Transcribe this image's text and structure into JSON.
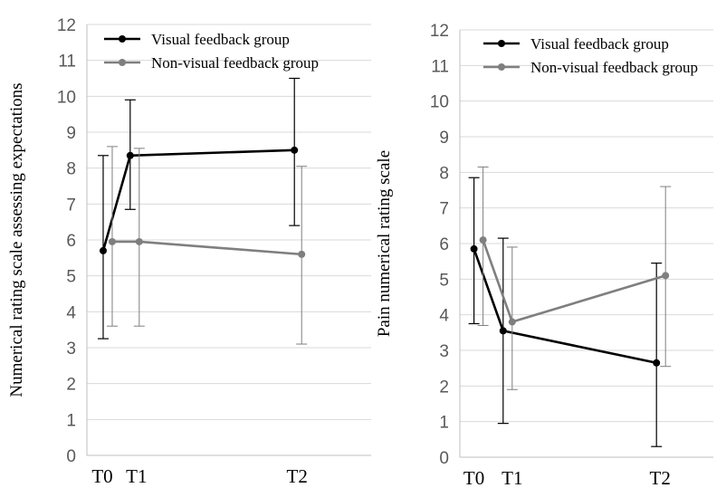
{
  "chart_data": [
    {
      "type": "line",
      "title": "",
      "xlabel": "",
      "ylabel": "Numerical  rating  scale  assessing  expectations",
      "ylim": [
        0,
        12
      ],
      "yticks": [
        0,
        1,
        2,
        3,
        4,
        5,
        6,
        7,
        8,
        9,
        10,
        11,
        12
      ],
      "categories": [
        "T0",
        "T1",
        "T2"
      ],
      "grid": true,
      "legend_position": "top",
      "series": [
        {
          "name": "Visual feedback group",
          "color": "#000000",
          "values": [
            5.7,
            8.35,
            8.5
          ],
          "error_low": [
            3.25,
            6.85,
            6.4
          ],
          "error_high": [
            8.35,
            9.9,
            10.5
          ]
        },
        {
          "name": "Non-visual feedback group",
          "color": "#7f7f7f",
          "values": [
            5.95,
            5.95,
            5.6
          ],
          "error_low": [
            3.6,
            3.6,
            3.1
          ],
          "error_high": [
            8.6,
            8.55,
            8.05
          ]
        }
      ]
    },
    {
      "type": "line",
      "title": "",
      "xlabel": "",
      "ylabel": "Pain  numerical  rating  scale",
      "ylim": [
        0,
        12
      ],
      "yticks": [
        0,
        1,
        2,
        3,
        4,
        5,
        6,
        7,
        8,
        9,
        10,
        11,
        12
      ],
      "categories": [
        "T0",
        "T1",
        "T2"
      ],
      "grid": true,
      "legend_position": "top",
      "series": [
        {
          "name": "Visual feedback group",
          "color": "#000000",
          "values": [
            5.85,
            3.55,
            2.65
          ],
          "error_low": [
            3.75,
            0.95,
            0.3
          ],
          "error_high": [
            7.85,
            6.15,
            5.45
          ]
        },
        {
          "name": "Non-visual feedback group",
          "color": "#7f7f7f",
          "values": [
            6.1,
            3.8,
            5.1
          ],
          "error_low": [
            3.7,
            1.9,
            2.55
          ],
          "error_high": [
            8.15,
            5.9,
            7.6
          ]
        }
      ]
    }
  ]
}
